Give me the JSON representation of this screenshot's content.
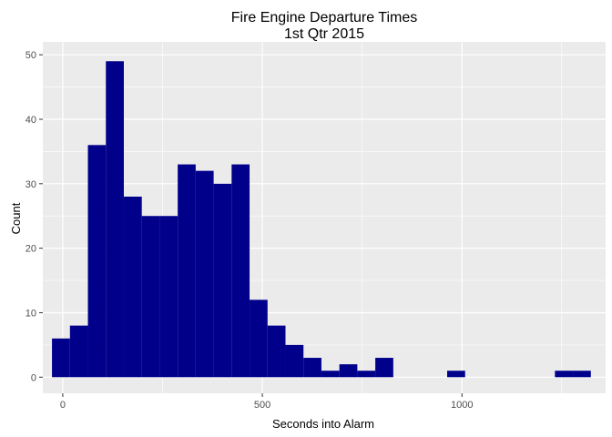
{
  "chart_data": {
    "type": "bar",
    "title": "Fire Engine Departure Times",
    "subtitle": "1st Qtr 2015",
    "xlabel": "Seconds into Alarm",
    "ylabel": "Count",
    "xlim": [
      -50,
      1360
    ],
    "ylim": [
      -2.5,
      52
    ],
    "x_ticks": [
      0,
      500,
      1000
    ],
    "y_ticks": [
      0,
      10,
      20,
      30,
      40,
      50
    ],
    "bin_width": 45,
    "bins": [
      {
        "x0": -27,
        "x1": 18,
        "count": 6
      },
      {
        "x0": 18,
        "x1": 63,
        "count": 8
      },
      {
        "x0": 63,
        "x1": 108,
        "count": 36
      },
      {
        "x0": 108,
        "x1": 153,
        "count": 49
      },
      {
        "x0": 153,
        "x1": 198,
        "count": 28
      },
      {
        "x0": 198,
        "x1": 243,
        "count": 25
      },
      {
        "x0": 243,
        "x1": 288,
        "count": 25
      },
      {
        "x0": 288,
        "x1": 333,
        "count": 33
      },
      {
        "x0": 333,
        "x1": 378,
        "count": 32
      },
      {
        "x0": 378,
        "x1": 423,
        "count": 30
      },
      {
        "x0": 423,
        "x1": 468,
        "count": 33
      },
      {
        "x0": 468,
        "x1": 513,
        "count": 12
      },
      {
        "x0": 513,
        "x1": 558,
        "count": 8
      },
      {
        "x0": 558,
        "x1": 603,
        "count": 5
      },
      {
        "x0": 603,
        "x1": 648,
        "count": 3
      },
      {
        "x0": 648,
        "x1": 693,
        "count": 1
      },
      {
        "x0": 693,
        "x1": 738,
        "count": 2
      },
      {
        "x0": 738,
        "x1": 783,
        "count": 1
      },
      {
        "x0": 783,
        "x1": 828,
        "count": 3
      },
      {
        "x0": 963,
        "x1": 1008,
        "count": 1
      },
      {
        "x0": 1233,
        "x1": 1278,
        "count": 1
      },
      {
        "x0": 1278,
        "x1": 1323,
        "count": 1
      }
    ],
    "grid": true,
    "colors": {
      "bar": "#00008b",
      "panel": "#ebebeb",
      "grid": "#ffffff"
    }
  }
}
